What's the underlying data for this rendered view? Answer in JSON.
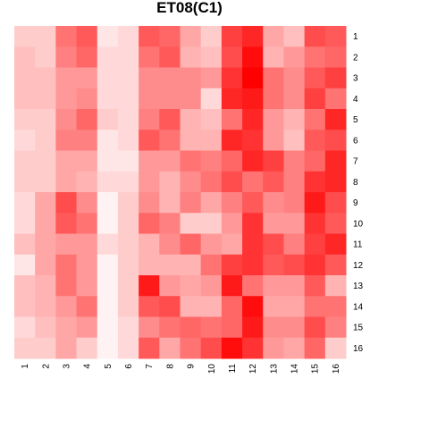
{
  "chart_data": {
    "type": "heatmap",
    "title": "ET08(C1)",
    "xlabel": "",
    "ylabel": "",
    "x_categories": [
      "1",
      "2",
      "3",
      "4",
      "5",
      "6",
      "7",
      "8",
      "9",
      "10",
      "11",
      "12",
      "13",
      "14",
      "15",
      "16"
    ],
    "y_categories": [
      "1",
      "2",
      "3",
      "4",
      "5",
      "6",
      "7",
      "8",
      "9",
      "10",
      "11",
      "12",
      "13",
      "14",
      "15",
      "16"
    ],
    "value_range": [
      0,
      1
    ],
    "color_low": "#ffffff",
    "color_high": "#ff0000",
    "grid": false,
    "legend": "none",
    "values": [
      [
        0.2,
        0.2,
        0.55,
        0.65,
        0.1,
        0.15,
        0.65,
        0.6,
        0.35,
        0.2,
        0.75,
        0.85,
        0.35,
        0.25,
        0.7,
        0.65
      ],
      [
        0.25,
        0.2,
        0.5,
        0.6,
        0.15,
        0.15,
        0.55,
        0.65,
        0.3,
        0.25,
        0.7,
        0.95,
        0.3,
        0.4,
        0.55,
        0.6
      ],
      [
        0.25,
        0.25,
        0.4,
        0.4,
        0.15,
        0.15,
        0.45,
        0.45,
        0.45,
        0.4,
        0.8,
        1.0,
        0.55,
        0.45,
        0.65,
        0.75
      ],
      [
        0.25,
        0.25,
        0.4,
        0.45,
        0.15,
        0.15,
        0.45,
        0.45,
        0.45,
        0.15,
        0.85,
        0.9,
        0.55,
        0.45,
        0.75,
        0.55
      ],
      [
        0.2,
        0.2,
        0.45,
        0.6,
        0.2,
        0.15,
        0.5,
        0.65,
        0.3,
        0.25,
        0.55,
        0.85,
        0.4,
        0.3,
        0.55,
        0.85
      ],
      [
        0.15,
        0.2,
        0.5,
        0.5,
        0.1,
        0.15,
        0.65,
        0.55,
        0.3,
        0.3,
        0.85,
        0.8,
        0.4,
        0.25,
        0.65,
        0.7
      ],
      [
        0.2,
        0.2,
        0.35,
        0.35,
        0.1,
        0.1,
        0.4,
        0.4,
        0.55,
        0.5,
        0.6,
        0.85,
        0.75,
        0.5,
        0.6,
        0.85
      ],
      [
        0.2,
        0.2,
        0.35,
        0.3,
        0.15,
        0.15,
        0.4,
        0.3,
        0.45,
        0.55,
        0.7,
        0.55,
        0.65,
        0.5,
        0.8,
        0.85
      ],
      [
        0.15,
        0.35,
        0.7,
        0.45,
        0.05,
        0.2,
        0.45,
        0.3,
        0.5,
        0.35,
        0.5,
        0.65,
        0.45,
        0.5,
        0.9,
        0.7
      ],
      [
        0.15,
        0.35,
        0.65,
        0.55,
        0.05,
        0.2,
        0.6,
        0.5,
        0.2,
        0.2,
        0.4,
        0.8,
        0.4,
        0.4,
        0.8,
        0.65
      ],
      [
        0.25,
        0.35,
        0.4,
        0.4,
        0.15,
        0.2,
        0.3,
        0.45,
        0.6,
        0.4,
        0.35,
        0.8,
        0.7,
        0.5,
        0.75,
        0.85
      ],
      [
        0.1,
        0.35,
        0.55,
        0.4,
        0.05,
        0.2,
        0.3,
        0.3,
        0.3,
        0.55,
        0.75,
        0.8,
        0.65,
        0.7,
        0.8,
        0.65
      ],
      [
        0.25,
        0.3,
        0.55,
        0.4,
        0.05,
        0.2,
        0.9,
        0.4,
        0.35,
        0.4,
        0.9,
        0.55,
        0.4,
        0.4,
        0.65,
        0.3
      ],
      [
        0.25,
        0.3,
        0.4,
        0.55,
        0.05,
        0.2,
        0.65,
        0.7,
        0.3,
        0.3,
        0.6,
        0.95,
        0.35,
        0.35,
        0.55,
        0.55
      ],
      [
        0.15,
        0.25,
        0.35,
        0.4,
        0.05,
        0.15,
        0.45,
        0.55,
        0.6,
        0.55,
        0.6,
        0.9,
        0.45,
        0.45,
        0.7,
        0.5
      ],
      [
        0.2,
        0.2,
        0.35,
        0.2,
        0.05,
        0.15,
        0.65,
        0.35,
        0.55,
        0.7,
        0.95,
        0.8,
        0.4,
        0.35,
        0.6,
        0.2
      ]
    ]
  }
}
